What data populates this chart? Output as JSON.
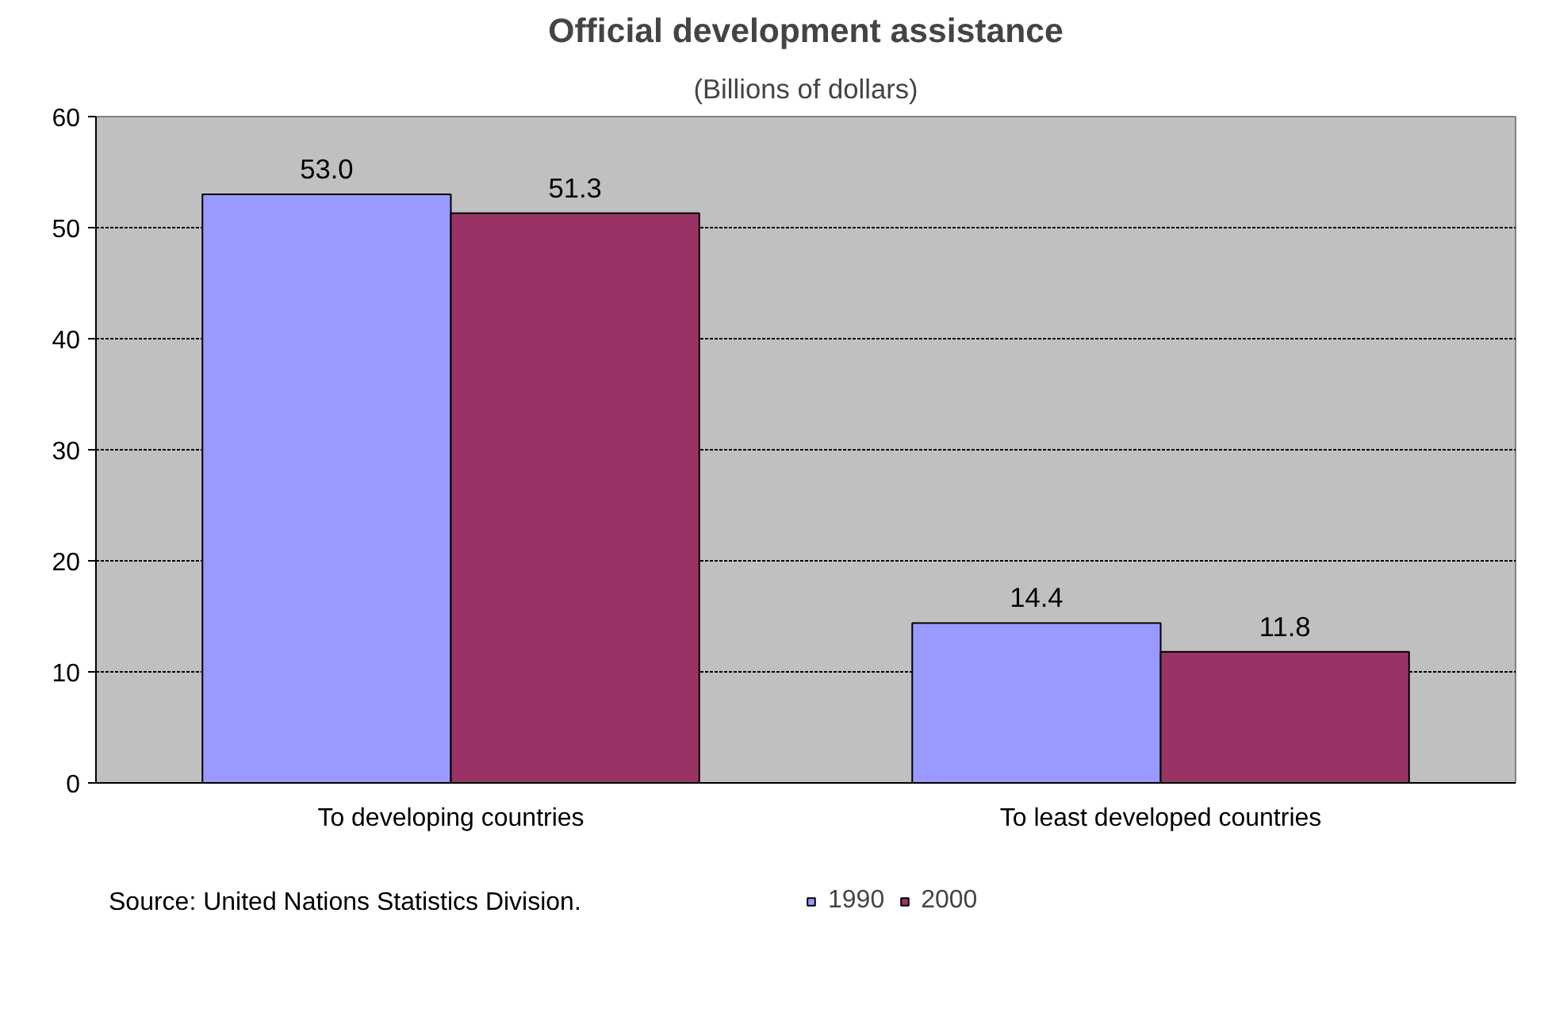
{
  "chart_data": {
    "type": "bar",
    "title": "Official development assistance",
    "subtitle": "(Billions of dollars)",
    "categories": [
      "To developing countries",
      "To least developed countries"
    ],
    "series": [
      {
        "name": "1990",
        "color": "#9999ff",
        "values": [
          53.0,
          14.4
        ],
        "value_labels": [
          "53.0",
          "14.4"
        ]
      },
      {
        "name": "2000",
        "color": "#993366",
        "values": [
          51.3,
          11.8
        ],
        "value_labels": [
          "51.3",
          "11.8"
        ]
      }
    ],
    "ylim": [
      0,
      60
    ],
    "yticks": [
      0,
      10,
      20,
      30,
      40,
      50,
      60
    ],
    "grid": "y",
    "legend": "bottom",
    "annotations": [
      "Source: United Nations Statistics Division."
    ]
  }
}
